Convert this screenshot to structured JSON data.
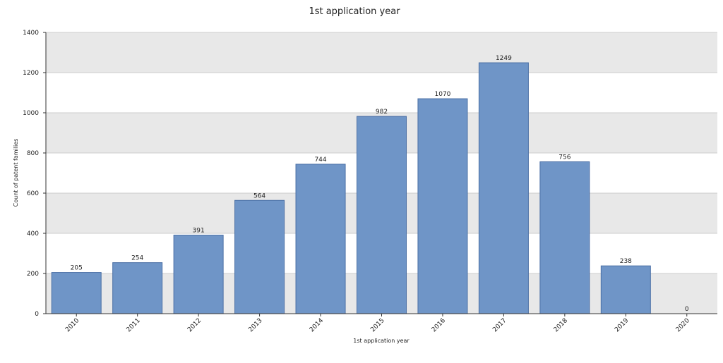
{
  "chart_data": {
    "type": "bar",
    "title": "1st application year",
    "xlabel": "1st application year",
    "ylabel": "Count of patent families",
    "categories": [
      "2010",
      "2011",
      "2012",
      "2013",
      "2014",
      "2015",
      "2016",
      "2017",
      "2018",
      "2019",
      "2020"
    ],
    "values": [
      205,
      254,
      391,
      564,
      744,
      982,
      1070,
      1249,
      756,
      238,
      0
    ],
    "ylim": [
      0,
      1400
    ],
    "yticks": [
      0,
      200,
      400,
      600,
      800,
      1000,
      1200,
      1400
    ],
    "grid": "horizontal alternating bands",
    "colors": {
      "bar_fill": "#6f95c7",
      "bar_stroke": "#4a6fa5",
      "band": "#e8e8e8",
      "gridline": "#cccccc",
      "axis": "#333333"
    }
  }
}
